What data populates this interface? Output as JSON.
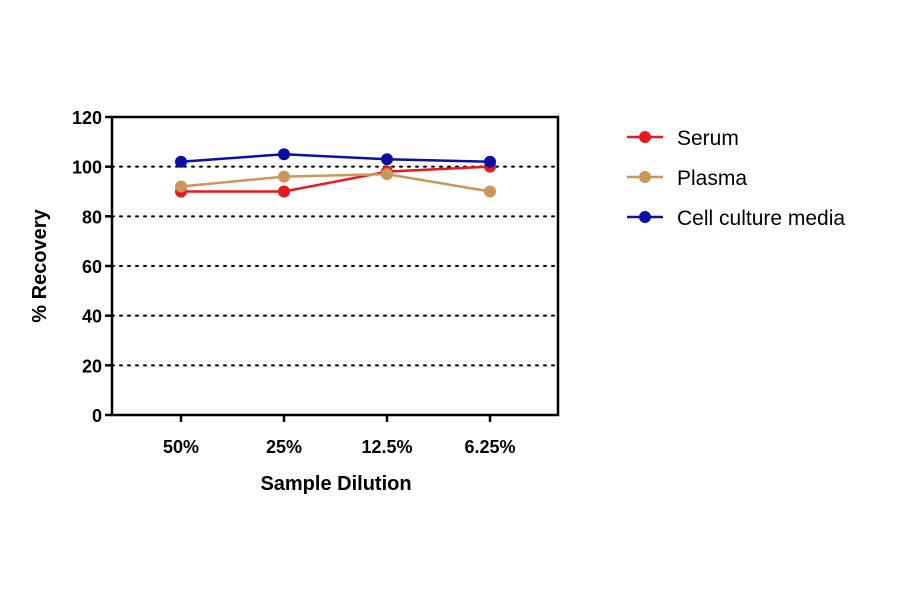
{
  "chart_data": {
    "type": "line",
    "title": "",
    "xlabel": "Sample Dilution",
    "ylabel": "% Recovery",
    "categories": [
      "50%",
      "25%",
      "12.5%",
      "6.25%"
    ],
    "ylim": [
      0,
      120
    ],
    "yticks": [
      0,
      20,
      40,
      60,
      80,
      100,
      120
    ],
    "grid": "horizontal dotted",
    "legend_position": "right",
    "series": [
      {
        "name": "Serum",
        "color": "#e8181c",
        "values": [
          90,
          90,
          98,
          100
        ]
      },
      {
        "name": "Plasma",
        "color": "#c9975a",
        "values": [
          92,
          96,
          97,
          90
        ]
      },
      {
        "name": "Cell culture media",
        "color": "#0b0fa8",
        "values": [
          102,
          105,
          103,
          102
        ]
      }
    ]
  }
}
